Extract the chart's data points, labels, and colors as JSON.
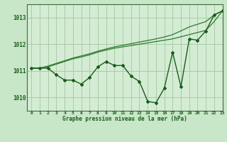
{
  "background_color": "#c8e6c8",
  "plot_bg_color": "#d4ecd4",
  "grid_color": "#a8cca8",
  "line_color_main": "#1a5c1a",
  "line_color_thin1": "#2d7a2d",
  "line_color_thin2": "#2d7a2d",
  "xlabel": "Graphe pression niveau de la mer (hPa)",
  "xlim": [
    -0.5,
    23
  ],
  "ylim": [
    1009.5,
    1013.5
  ],
  "yticks": [
    1010,
    1011,
    1012,
    1013
  ],
  "xticks": [
    0,
    1,
    2,
    3,
    4,
    5,
    6,
    7,
    8,
    9,
    10,
    11,
    12,
    13,
    14,
    15,
    16,
    17,
    18,
    19,
    20,
    21,
    22,
    23
  ],
  "series_main_x": [
    0,
    1,
    2,
    3,
    4,
    5,
    6,
    7,
    8,
    9,
    10,
    11,
    12,
    13,
    14,
    15,
    16,
    17,
    18,
    19,
    20,
    21,
    22,
    23
  ],
  "series_main_y": [
    1011.1,
    1011.1,
    1011.1,
    1010.85,
    1010.65,
    1010.65,
    1010.5,
    1010.75,
    1011.15,
    1011.35,
    1011.2,
    1011.2,
    1010.8,
    1010.6,
    1009.85,
    1009.8,
    1010.35,
    1011.7,
    1010.4,
    1012.2,
    1012.15,
    1012.5,
    1013.1,
    1013.25
  ],
  "series_thin1_x": [
    0,
    1,
    2,
    3,
    4,
    5,
    6,
    7,
    8,
    9,
    10,
    11,
    12,
    13,
    14,
    15,
    16,
    17,
    18,
    19,
    20,
    21,
    22,
    23
  ],
  "series_thin1_y": [
    1011.1,
    1011.1,
    1011.15,
    1011.25,
    1011.35,
    1011.45,
    1011.52,
    1011.6,
    1011.7,
    1011.78,
    1011.85,
    1011.9,
    1011.95,
    1012.0,
    1012.05,
    1012.1,
    1012.15,
    1012.2,
    1012.28,
    1012.36,
    1012.44,
    1012.52,
    1012.85,
    1013.25
  ],
  "series_thin2_x": [
    0,
    1,
    2,
    3,
    4,
    5,
    6,
    7,
    8,
    9,
    10,
    11,
    12,
    13,
    14,
    15,
    16,
    17,
    18,
    19,
    20,
    21,
    22,
    23
  ],
  "series_thin2_y": [
    1011.1,
    1011.1,
    1011.18,
    1011.28,
    1011.38,
    1011.48,
    1011.56,
    1011.64,
    1011.74,
    1011.82,
    1011.9,
    1011.96,
    1012.02,
    1012.08,
    1012.14,
    1012.2,
    1012.27,
    1012.36,
    1012.5,
    1012.65,
    1012.75,
    1012.85,
    1013.1,
    1013.25
  ]
}
